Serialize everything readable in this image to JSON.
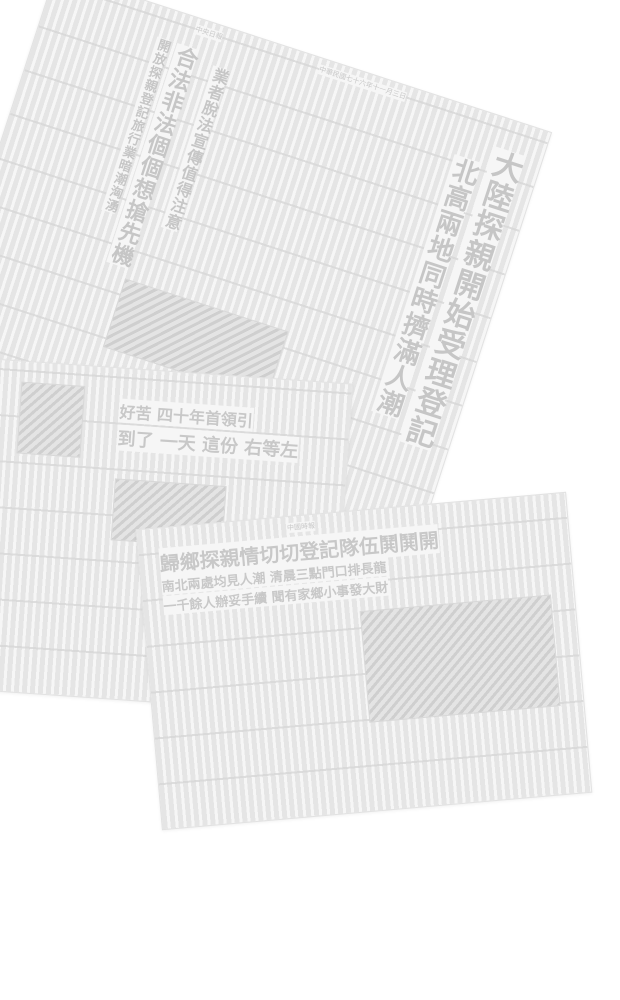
{
  "scene": {
    "description_colors": {
      "paper": "#f6f6f6",
      "ink": "#c4c4c4",
      "background": "#ffffff"
    }
  },
  "sheet_1": {
    "masthead": "中央日報",
    "date_line": "中華民國七十六年十一月三日",
    "headlines": [
      "開放探親登記旅行業暗潮洶湧",
      "合法非法個個想搶先機",
      "業者脫法宣傳值得注意",
      "大陸探親開始受理登記",
      "北高兩地同時擠滿人潮"
    ]
  },
  "sheet_2": {
    "headlines": [
      "好苦 四十年首領引",
      "到了 一天 這份 右等左"
    ]
  },
  "sheet_3": {
    "masthead": "中國時報",
    "headlines": [
      "歸鄉探親情切切登記隊伍鬨鬨開",
      "南北兩處均見人潮 清晨三點門口排長龍",
      "一千餘人辦妥手續 聞有家鄉小事發大財"
    ]
  }
}
